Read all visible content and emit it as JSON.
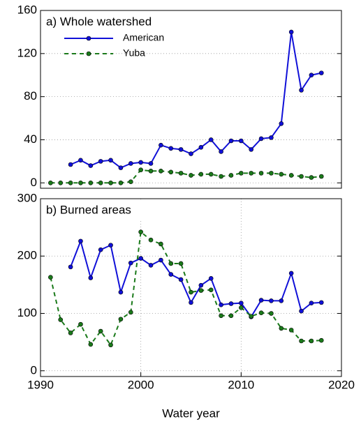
{
  "chart_data": [
    {
      "type": "line",
      "annotation": "a) Whole watershed",
      "legend": "upper left",
      "grid": true,
      "xlim": [
        1990,
        2020
      ],
      "ylim": [
        -5,
        160
      ],
      "yticks": [
        0,
        40,
        80,
        120,
        160
      ],
      "x": [
        1991,
        1992,
        1993,
        1994,
        1995,
        1996,
        1997,
        1998,
        1999,
        2000,
        2001,
        2002,
        2003,
        2004,
        2005,
        2006,
        2007,
        2008,
        2009,
        2010,
        2011,
        2012,
        2013,
        2014,
        2015,
        2016,
        2017,
        2018
      ],
      "series": [
        {
          "name": "American",
          "color": "#1010d8",
          "dash": "solid",
          "values": [
            null,
            null,
            17,
            21,
            16,
            20,
            21,
            14,
            18,
            19,
            18,
            35,
            32,
            31,
            27,
            33,
            40,
            29,
            39,
            39,
            31,
            41,
            42,
            55,
            140,
            86,
            100,
            102
          ]
        },
        {
          "name": "Yuba",
          "color": "#1a7a1a",
          "dash": "dashed",
          "values": [
            0,
            0,
            0,
            0,
            0,
            0,
            0,
            0,
            1,
            12,
            11,
            11,
            10,
            9,
            7,
            8,
            8,
            6,
            7,
            9,
            9,
            9,
            9,
            8,
            7,
            6,
            5,
            6
          ]
        }
      ]
    },
    {
      "type": "line",
      "annotation": "b) Burned areas",
      "grid": true,
      "xlim": [
        1990,
        2020
      ],
      "ylim": [
        -10,
        300
      ],
      "yticks": [
        0,
        100,
        200,
        300
      ],
      "xticks": [
        1990,
        2000,
        2010,
        2020
      ],
      "xlabel": "Water year",
      "x": [
        1991,
        1992,
        1993,
        1994,
        1995,
        1996,
        1997,
        1998,
        1999,
        2000,
        2001,
        2002,
        2003,
        2004,
        2005,
        2006,
        2007,
        2008,
        2009,
        2010,
        2011,
        2012,
        2013,
        2014,
        2015,
        2016,
        2017,
        2018
      ],
      "series": [
        {
          "color": "#1010d8",
          "dash": "solid",
          "values": [
            null,
            null,
            181,
            226,
            162,
            211,
            219,
            137,
            188,
            196,
            184,
            193,
            168,
            159,
            119,
            149,
            161,
            115,
            117,
            118,
            94,
            123,
            122,
            122,
            170,
            104,
            118,
            119
          ]
        },
        {
          "color": "#1a7a1a",
          "dash": "dashed",
          "values": [
            163,
            89,
            66,
            81,
            46,
            69,
            45,
            90,
            102,
            242,
            228,
            221,
            187,
            187,
            137,
            140,
            141,
            96,
            96,
            110,
            95,
            101,
            100,
            74,
            71,
            52,
            52,
            53
          ]
        }
      ]
    }
  ]
}
